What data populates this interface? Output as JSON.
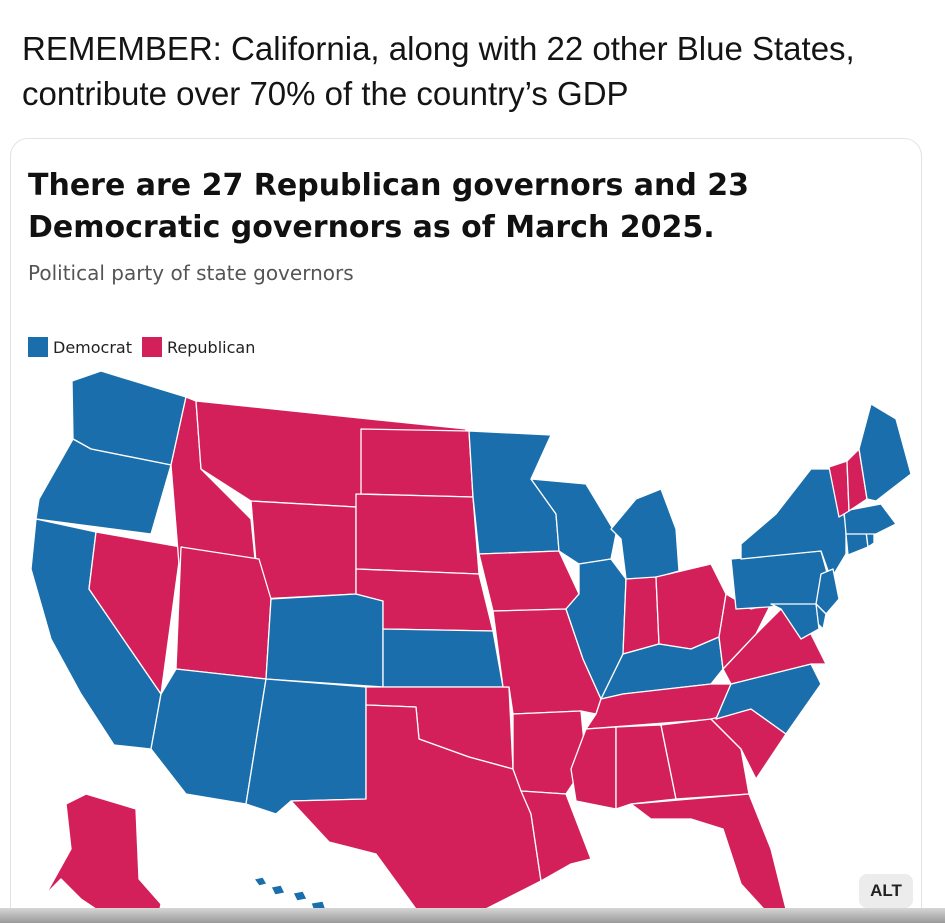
{
  "post": {
    "text": "REMEMBER: California, along with 22 other Blue States, contribute over 70% of the country’s GDP"
  },
  "chart": {
    "title": "There are 27 Republican governors and 23 Democratic governors as of March 2025.",
    "subtitle": "Political party of state governors",
    "legend": [
      {
        "label": "Democrat",
        "color": "#1a6eab"
      },
      {
        "label": "Republican",
        "color": "#d3205a"
      }
    ],
    "colors": {
      "democrat": "#1a6eab",
      "republican": "#d3205a"
    }
  },
  "chart_data": {
    "type": "choropleth-map",
    "title": "There are 27 Republican governors and 23 Democratic governors as of March 2025.",
    "subtitle": "Political party of state governors",
    "legend_placement": "top-left",
    "categories": [
      "Democrat",
      "Republican"
    ],
    "states": {
      "WA": "Democrat",
      "OR": "Democrat",
      "CA": "Democrat",
      "NV": "Republican",
      "ID": "Republican",
      "MT": "Republican",
      "WY": "Republican",
      "UT": "Republican",
      "AZ": "Democrat",
      "CO": "Democrat",
      "NM": "Democrat",
      "ND": "Republican",
      "SD": "Republican",
      "NE": "Republican",
      "KS": "Democrat",
      "OK": "Republican",
      "TX": "Republican",
      "MN": "Democrat",
      "IA": "Republican",
      "MO": "Republican",
      "AR": "Republican",
      "LA": "Republican",
      "WI": "Democrat",
      "IL": "Democrat",
      "MI": "Democrat",
      "IN": "Republican",
      "OH": "Republican",
      "KY": "Democrat",
      "TN": "Republican",
      "MS": "Republican",
      "AL": "Republican",
      "GA": "Republican",
      "FL": "Republican",
      "SC": "Republican",
      "NC": "Democrat",
      "VA": "Republican",
      "WV": "Republican",
      "PA": "Democrat",
      "NY": "Democrat",
      "NJ": "Democrat",
      "DE": "Democrat",
      "MD": "Democrat",
      "CT": "Democrat",
      "RI": "Democrat",
      "MA": "Democrat",
      "VT": "Republican",
      "NH": "Republican",
      "ME": "Democrat",
      "AK": "Republican",
      "HI": "Democrat"
    }
  },
  "alt_badge": "ALT"
}
